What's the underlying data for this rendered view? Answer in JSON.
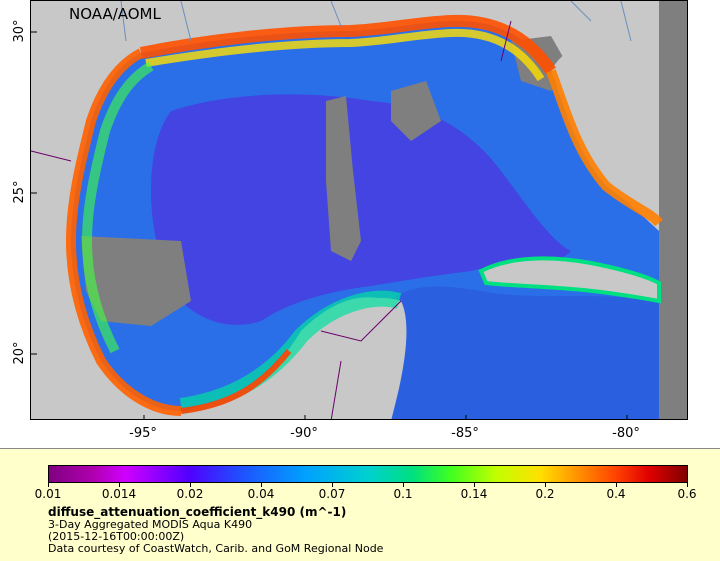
{
  "map": {
    "credit": "NOAA/AOML",
    "x_ticks": [
      "-95°",
      "-90°",
      "-85°",
      "-80°"
    ],
    "y_ticks": [
      "30°",
      "25°",
      "20°"
    ],
    "colors": {
      "land": "#c8c8c8",
      "no_data": "#7f7f7f",
      "border": "#6a006a",
      "river": "#6b8fc0"
    }
  },
  "legend": {
    "ticks": [
      "0.01",
      "0.014",
      "0.02",
      "0.04",
      "0.07",
      "0.1",
      "0.14",
      "0.2",
      "0.4",
      "0.6"
    ],
    "variable": "diffuse_attenuation_coefficient_k490 (m^-1)",
    "lines": [
      "3-Day Aggregated MODIS Aqua K490",
      "(2015-12-16T00:00:00Z)",
      "Data courtesy of CoastWatch, Carib. and GoM Regional Node"
    ]
  }
}
